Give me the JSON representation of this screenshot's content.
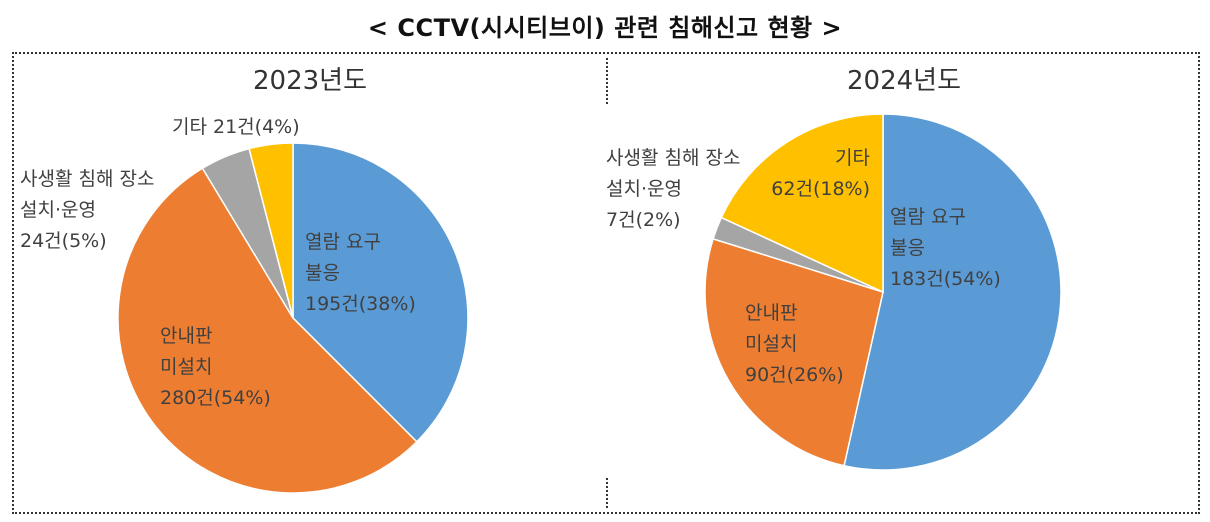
{
  "title": "< CCTV(시시티브이) 관련 침해신고 현황 >",
  "chart_data": [
    {
      "type": "pie",
      "title": "2023년도",
      "slices": [
        {
          "lines": [
            "열람 요구",
            "불응",
            "195건(38%)"
          ],
          "value": 195,
          "percent": 38,
          "color": "#5B9BD5"
        },
        {
          "lines": [
            "안내판",
            "미설치",
            "280건(54%)"
          ],
          "value": 280,
          "percent": 54,
          "color": "#ED7D31"
        },
        {
          "lines": [
            "사생활 침해 장소",
            "설치·운영",
            "24건(5%)"
          ],
          "value": 24,
          "percent": 5,
          "color": "#A5A5A5"
        },
        {
          "lines": [
            "기타 21건(4%)"
          ],
          "value": 21,
          "percent": 4,
          "color": "#FFC000"
        }
      ]
    },
    {
      "type": "pie",
      "title": "2024년도",
      "slices": [
        {
          "lines": [
            "열람 요구",
            "불응",
            "183건(54%)"
          ],
          "value": 183,
          "percent": 54,
          "color": "#5B9BD5"
        },
        {
          "lines": [
            "안내판",
            "미설치",
            "90건(26%)"
          ],
          "value": 90,
          "percent": 26,
          "color": "#ED7D31"
        },
        {
          "lines": [
            "사생활 침해 장소",
            "설치·운영",
            "7건(2%)"
          ],
          "value": 7,
          "percent": 2,
          "color": "#A5A5A5"
        },
        {
          "lines": [
            "기타",
            "62건(18%)"
          ],
          "value": 62,
          "percent": 18,
          "color": "#FFC000"
        }
      ]
    }
  ]
}
